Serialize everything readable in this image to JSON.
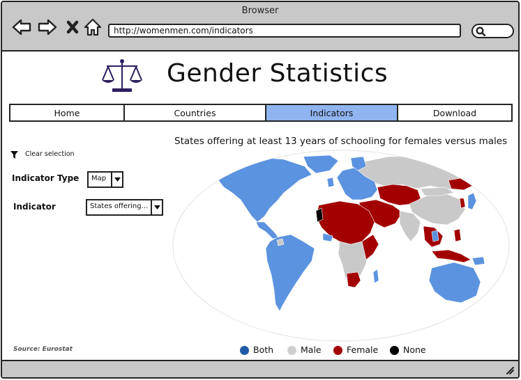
{
  "browser": {
    "title": "Browser",
    "url": "http://womenmen.com/indicators"
  },
  "header": {
    "title": "Gender Statistics",
    "logo_icon": "balance-scale-icon"
  },
  "nav": {
    "tabs": [
      {
        "label": "Home",
        "active": false
      },
      {
        "label": "Countries",
        "active": false
      },
      {
        "label": "Indicators",
        "active": true
      },
      {
        "label": "Download",
        "active": false
      }
    ]
  },
  "filters": {
    "clear_label": "Clear selection",
    "indicator_type_label": "Indicator Type",
    "indicator_type_value": "Map",
    "indicator_label": "Indicator",
    "indicator_value": "States offering..."
  },
  "map": {
    "title": "States offering at least 13 years of schooling for females versus males",
    "source": "Source: Eurostat",
    "legend": [
      {
        "label": "Both",
        "color": "#1f5ba6"
      },
      {
        "label": "Male",
        "color": "#cfcfcf"
      },
      {
        "label": "Female",
        "color": "#a30000"
      },
      {
        "label": "None",
        "color": "#000000"
      }
    ],
    "colors": {
      "both_fill": "#5b93e0",
      "male_fill": "#c9c9c9",
      "female_fill": "#a30000"
    }
  }
}
